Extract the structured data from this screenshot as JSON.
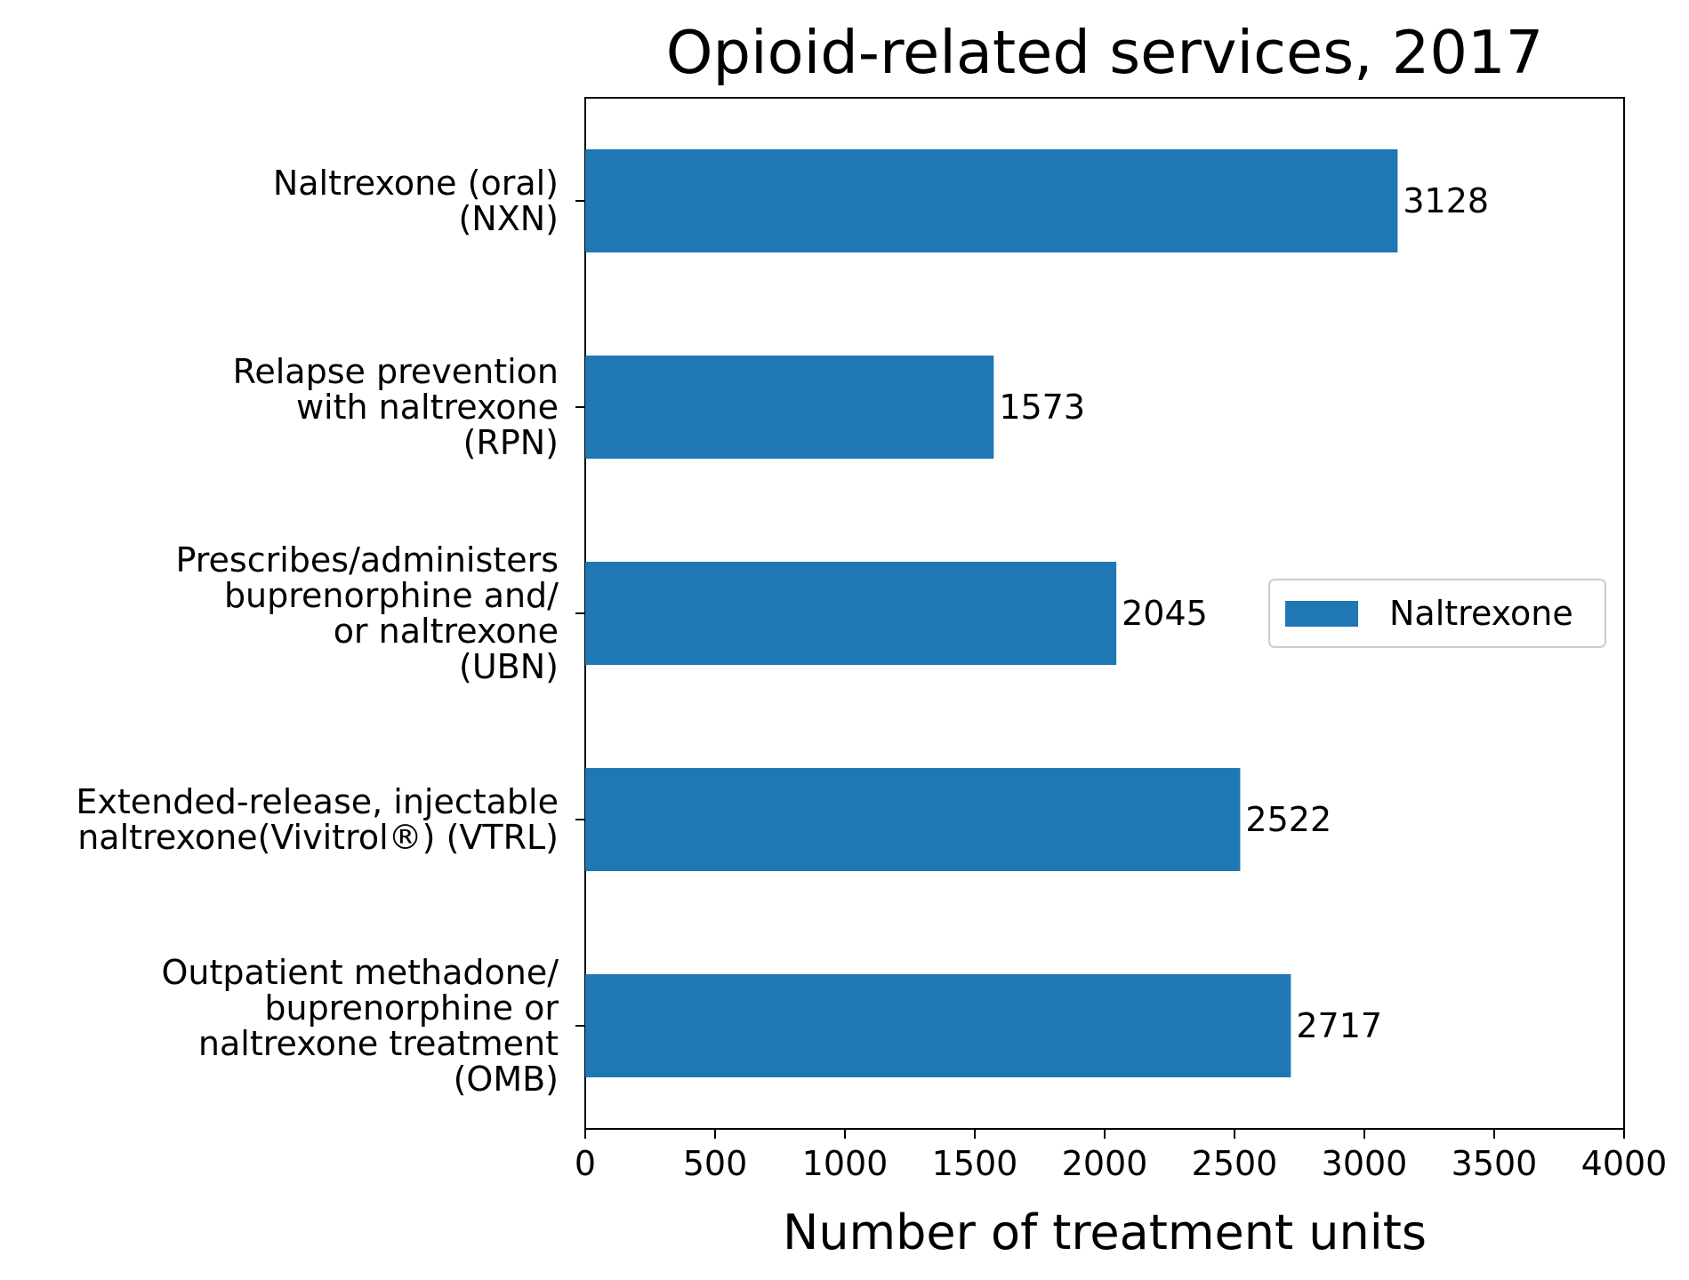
{
  "chart_data": {
    "type": "bar",
    "orientation": "horizontal",
    "title": "Opioid-related services, 2017",
    "xlabel": "Number of treatment units",
    "ylabel": "",
    "categories": [
      [
        "Naltrexone (oral)",
        "(NXN)"
      ],
      [
        "Relapse prevention",
        "with naltrexone",
        "(RPN)"
      ],
      [
        "Prescribes/administers",
        "buprenorphine and/",
        "or naltrexone",
        "(UBN)"
      ],
      [
        "Extended-release, injectable",
        "naltrexone(Vivitrol®) (VTRL)"
      ],
      [
        "Outpatient methadone/",
        "buprenorphine or",
        "naltrexone treatment",
        "(OMB)"
      ]
    ],
    "series": [
      {
        "name": "Naltrexone",
        "values": [
          3128,
          1573,
          2045,
          2522,
          2717
        ],
        "color": "#1f77b4"
      }
    ],
    "xlim": [
      0,
      4000
    ],
    "xticks": [
      0,
      500,
      1000,
      1500,
      2000,
      2500,
      3000,
      3500,
      4000
    ],
    "grid": false,
    "legend": {
      "position": "center-right",
      "entries": [
        "Naltrexone"
      ]
    },
    "data_labels": true
  }
}
